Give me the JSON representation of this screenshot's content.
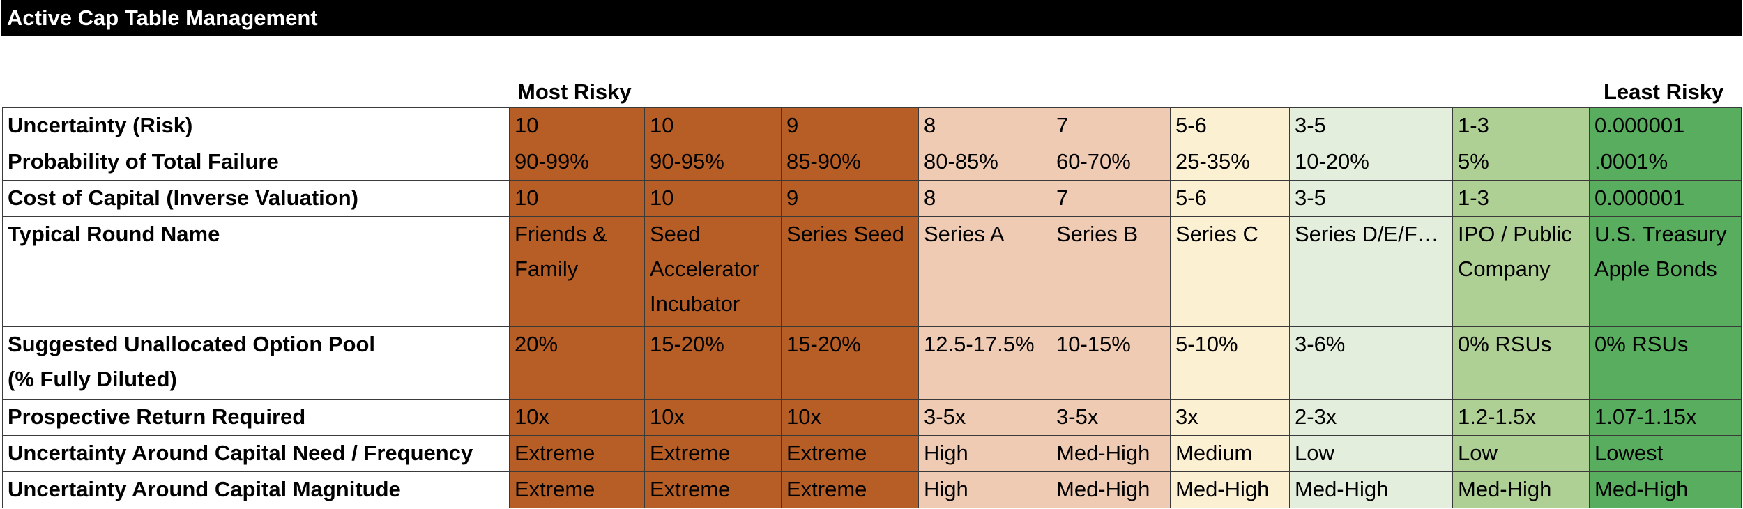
{
  "title": "Active Cap Table Management",
  "scale": {
    "left_label": "Most Risky",
    "right_label": "Least Risky"
  },
  "column_colors": [
    "#B75E27",
    "#B75E27",
    "#B75E27",
    "#F0CBB3",
    "#F0CBB3",
    "#FBF0D2",
    "#E4EEDC",
    "#AFD095",
    "#58AE5E"
  ],
  "rows": [
    {
      "label": "Uncertainty (Risk)",
      "cells": [
        "10",
        "10",
        "9",
        "8",
        "7",
        "5-6",
        "3-5",
        "1-3",
        "0.000001"
      ]
    },
    {
      "label": "Probability of Total Failure",
      "cells": [
        "90-99%",
        "90-95%",
        "85-90%",
        "80-85%",
        "60-70%",
        "25-35%",
        "10-20%",
        "5%",
        ".0001%"
      ]
    },
    {
      "label": "Cost of Capital (Inverse Valuation)",
      "cells": [
        "10",
        "10",
        "9",
        "8",
        "7",
        "5-6",
        "3-5",
        "1-3",
        "0.000001"
      ]
    },
    {
      "label": "Typical Round Name",
      "cells": [
        "Friends & Family",
        "Seed Accelerator Incubator",
        "Series Seed",
        "Series A",
        "Series B",
        "Series C",
        "Series D/E/F…",
        "IPO / Public Company",
        "U.S. Treasury Apple Bonds"
      ]
    },
    {
      "label": "Suggested Unallocated Option Pool",
      "label2": "(% Fully Diluted)",
      "cells": [
        "20%",
        "15-20%",
        "15-20%",
        "12.5-17.5%",
        "10-15%",
        "5-10%",
        "3-6%",
        "0% RSUs",
        "0% RSUs"
      ]
    },
    {
      "label": "Prospective Return Required",
      "cells": [
        "10x",
        "10x",
        "10x",
        "3-5x",
        "3-5x",
        "3x",
        "2-3x",
        "1.2-1.5x",
        "1.07-1.15x"
      ]
    },
    {
      "label": "Uncertainty Around Capital Need / Frequency",
      "cells": [
        "Extreme",
        "Extreme",
        "Extreme",
        "High",
        "Med-High",
        "Medium",
        "Low",
        "Low",
        "Lowest"
      ]
    },
    {
      "label": "Uncertainty Around Capital Magnitude",
      "cells": [
        "Extreme",
        "Extreme",
        "Extreme",
        "High",
        "Med-High",
        "Med-High",
        "Med-High",
        "Med-High",
        "Med-High"
      ]
    }
  ]
}
